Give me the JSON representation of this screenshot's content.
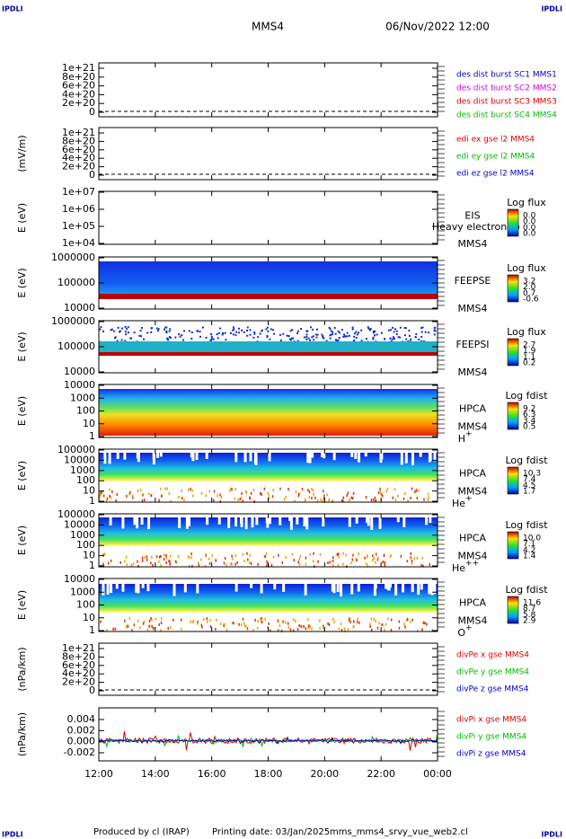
{
  "header": {
    "left_logo": "IPDLI",
    "right_logo": "IPDLI",
    "title": "MMS4",
    "date": "06/Nov/2022 12:00"
  },
  "panels": [
    {
      "yticks": [
        "1e+21",
        "8e+20",
        "6e+20",
        "4e+20",
        "2e+20",
        "0"
      ],
      "legend": [
        {
          "text": "des dist burst SC1 MMS1",
          "color": "#0000cc"
        },
        {
          "text": "des dist burst SC2 MMS2",
          "color": "#dd00dd"
        },
        {
          "text": "des dist burst SC3 MMS3",
          "color": "#dd0000"
        },
        {
          "text": "des dist burst SC4 MMS4",
          "color": "#00bb00"
        }
      ]
    },
    {
      "ylabel": "(mV/m)",
      "yticks": [
        "1e+21",
        "8e+20",
        "6e+20",
        "4e+20",
        "2e+20",
        "0"
      ],
      "legend": [
        {
          "text": "edi ex gse l2 MMS4",
          "color": "#dd0000"
        },
        {
          "text": "edi ey gse l2 MMS4",
          "color": "#00bb00"
        },
        {
          "text": "edi ez gse l2 MMS4",
          "color": "#0000cc"
        }
      ]
    },
    {
      "ylabel": "E (eV)",
      "yticks": [
        "1e+07",
        "1e+06",
        "1e+05",
        "1e+04"
      ],
      "instrument": "EIS",
      "spacecraft": "MMS4",
      "note": "Heavy electron to",
      "colorbar": {
        "title": "Log flux",
        "ticks": [
          "0.0",
          "0.0",
          "0.0",
          "0.0"
        ]
      }
    },
    {
      "ylabel": "E (eV)",
      "yticks": [
        "1000000",
        "100000",
        "10000"
      ],
      "instrument": "FEEPSE",
      "spacecraft": "MMS4",
      "colorbar": {
        "title": "Log flux",
        "ticks": [
          "3.2",
          "2.0",
          "0.7",
          "-0.6"
        ]
      }
    },
    {
      "ylabel": "E (eV)",
      "yticks": [
        "1000000",
        "100000",
        "10000"
      ],
      "instrument": "FEEPSI",
      "spacecraft": "MMS4",
      "colorbar": {
        "title": "Log flux",
        "ticks": [
          "2.7",
          "1.9",
          "1.1",
          "0.2"
        ]
      }
    },
    {
      "ylabel": "E (eV)",
      "yticks": [
        "10000",
        "1000",
        "100",
        "10",
        "1"
      ],
      "instrument": "HPCA",
      "spacecraft": "MMS4",
      "species": "H",
      "species_sup": "+",
      "colorbar": {
        "title": "Log fdist",
        "ticks": [
          "9.2",
          "6.3",
          "3.4",
          "0.5"
        ]
      }
    },
    {
      "ylabel": "E (eV)",
      "yticks": [
        "100000",
        "10000",
        "1000",
        "100",
        "10",
        "1"
      ],
      "instrument": "HPCA",
      "spacecraft": "MMS4",
      "species": "He",
      "species_sup": "+",
      "colorbar": {
        "title": "Log fdist",
        "ticks": [
          "10.3",
          "7.4",
          "4.5",
          "1.7"
        ]
      }
    },
    {
      "ylabel": "E (eV)",
      "yticks": [
        "100000",
        "10000",
        "1000",
        "100",
        "10",
        "1"
      ],
      "instrument": "HPCA",
      "spacecraft": "MMS4",
      "species": "He",
      "species_sup": "++",
      "colorbar": {
        "title": "Log fdist",
        "ticks": [
          "10.0",
          "7.1",
          "4.2",
          "1.4"
        ]
      }
    },
    {
      "ylabel": "E (eV)",
      "yticks": [
        "10000",
        "1000",
        "100",
        "10",
        "1"
      ],
      "instrument": "HPCA",
      "spacecraft": "MMS4",
      "species": "O",
      "species_sup": "+",
      "colorbar": {
        "title": "Log fdist",
        "ticks": [
          "11.6",
          "8.7",
          "5.8",
          "2.9"
        ]
      }
    },
    {
      "ylabel": "(nPa/km)",
      "yticks": [
        "1e+21",
        "8e+20",
        "6e+20",
        "4e+20",
        "2e+20",
        "0"
      ],
      "legend": [
        {
          "text": "divPe x gse MMS4",
          "color": "#dd0000"
        },
        {
          "text": "divPe y gse MMS4",
          "color": "#00bb00"
        },
        {
          "text": "divPe z gse MMS4",
          "color": "#0000cc"
        }
      ]
    },
    {
      "ylabel": "(nPa/km)",
      "yticks": [
        "0.004",
        "0.002",
        "0.000",
        "-0.002"
      ],
      "legend": [
        {
          "text": "divPi x gse MMS4",
          "color": "#dd0000"
        },
        {
          "text": "divPi y gse MMS4",
          "color": "#00bb00"
        },
        {
          "text": "divPi z gse MMS4",
          "color": "#0000cc"
        }
      ]
    }
  ],
  "xticks": [
    "12:00",
    "14:00",
    "16:00",
    "18:00",
    "20:00",
    "22:00",
    "00:00"
  ],
  "footer": {
    "credit": "Produced by cl (IRAP)",
    "printing_date": "Printing date: 03/Jan/2025",
    "filename": "mms_mms4_srvy_vue_web2.cl",
    "left_logo": "IPDLI",
    "right_logo": "IPDLI"
  }
}
